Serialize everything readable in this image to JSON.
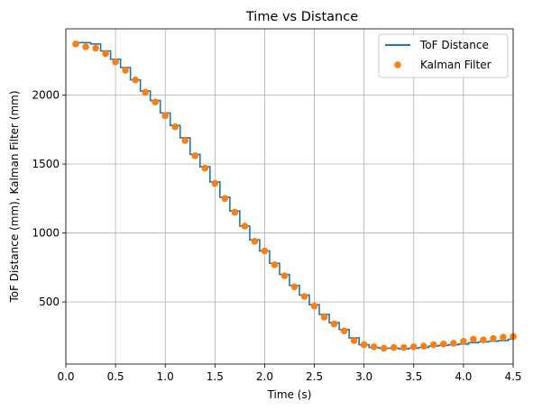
{
  "chart_data": {
    "type": "line",
    "title": "Time vs Distance",
    "xlabel": "Time (s)",
    "ylabel": "ToF Distance (mm), Kalman Filter (mm)",
    "xlim": [
      0,
      4.5
    ],
    "ylim": [
      50,
      2480
    ],
    "xticks": [
      0,
      0.5,
      1,
      1.5,
      2,
      2.5,
      3,
      3.5,
      4,
      4.5
    ],
    "xtick_labels": [
      "0.0",
      "0.5",
      "1.0",
      "1.5",
      "2.0",
      "2.5",
      "3.0",
      "3.5",
      "4.0",
      "4.5"
    ],
    "yticks": [
      500,
      1000,
      1500,
      2000
    ],
    "ytick_labels": [
      "500",
      "1000",
      "1500",
      "2000"
    ],
    "grid": true,
    "legend_position": "top-right",
    "series": [
      {
        "name": "ToF Distance",
        "style": "step-line",
        "color": "#1f77b4",
        "x": [
          0.1,
          0.2,
          0.3,
          0.4,
          0.5,
          0.6,
          0.7,
          0.8,
          0.9,
          1.0,
          1.1,
          1.2,
          1.3,
          1.4,
          1.5,
          1.6,
          1.7,
          1.8,
          1.9,
          2.0,
          2.1,
          2.2,
          2.3,
          2.4,
          2.5,
          2.6,
          2.7,
          2.8,
          2.9,
          3.0,
          3.1,
          3.2,
          3.3,
          3.4,
          3.5,
          3.6,
          3.7,
          3.8,
          3.9,
          4.0,
          4.1,
          4.2,
          4.3,
          4.4,
          4.5
        ],
        "y": [
          2380,
          2380,
          2370,
          2320,
          2260,
          2200,
          2110,
          2030,
          1960,
          1870,
          1780,
          1690,
          1570,
          1480,
          1370,
          1260,
          1160,
          1050,
          950,
          870,
          780,
          700,
          620,
          550,
          480,
          410,
          350,
          300,
          240,
          190,
          170,
          165,
          165,
          160,
          165,
          170,
          180,
          185,
          190,
          195,
          205,
          210,
          215,
          220,
          230
        ]
      },
      {
        "name": "Kalman Filter",
        "style": "markers",
        "color": "#ff7f0e",
        "x": [
          0.1,
          0.2,
          0.3,
          0.4,
          0.5,
          0.6,
          0.7,
          0.8,
          0.9,
          1.0,
          1.1,
          1.2,
          1.3,
          1.4,
          1.5,
          1.6,
          1.7,
          1.8,
          1.9,
          2.0,
          2.1,
          2.2,
          2.3,
          2.4,
          2.5,
          2.6,
          2.7,
          2.8,
          2.9,
          3.0,
          3.1,
          3.2,
          3.3,
          3.4,
          3.5,
          3.6,
          3.7,
          3.8,
          3.9,
          4.0,
          4.1,
          4.2,
          4.3,
          4.4,
          4.5
        ],
        "y": [
          2370,
          2350,
          2340,
          2300,
          2240,
          2180,
          2110,
          2020,
          1950,
          1850,
          1770,
          1670,
          1560,
          1470,
          1360,
          1250,
          1150,
          1050,
          940,
          870,
          770,
          690,
          610,
          540,
          470,
          390,
          340,
          290,
          220,
          190,
          175,
          165,
          170,
          170,
          175,
          180,
          190,
          195,
          200,
          215,
          230,
          225,
          235,
          245,
          250
        ]
      }
    ]
  }
}
